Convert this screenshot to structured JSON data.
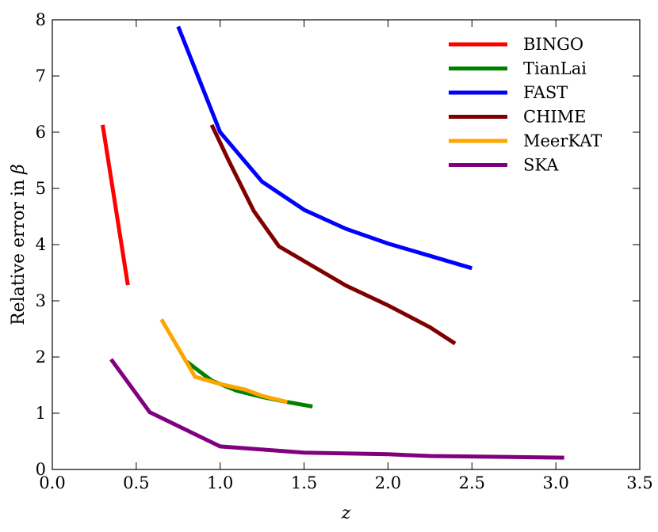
{
  "chart_data": {
    "type": "line",
    "title": "",
    "xlabel": "z",
    "ylabel_prefix": "Relative error in ",
    "ylabel_symbol": "β",
    "xlim": [
      0.0,
      3.5
    ],
    "ylim": [
      0,
      8
    ],
    "x_ticks": [
      0.0,
      0.5,
      1.0,
      1.5,
      2.0,
      2.5,
      3.0,
      3.5
    ],
    "x_tick_labels": [
      "0.0",
      "0.5",
      "1.0",
      "1.5",
      "2.0",
      "2.5",
      "3.0",
      "3.5"
    ],
    "y_ticks": [
      0,
      1,
      2,
      3,
      4,
      5,
      6,
      7,
      8
    ],
    "y_tick_labels": [
      "0",
      "1",
      "2",
      "3",
      "4",
      "5",
      "6",
      "7",
      "8"
    ],
    "grid": false,
    "legend_position": "top-right",
    "series": [
      {
        "name": "BINGO",
        "color": "#ff0000",
        "points": [
          [
            0.3,
            6.13
          ],
          [
            0.45,
            3.28
          ]
        ]
      },
      {
        "name": "TianLai",
        "color": "#008000",
        "points": [
          [
            0.8,
            1.92
          ],
          [
            0.95,
            1.58
          ],
          [
            1.1,
            1.4
          ],
          [
            1.25,
            1.29
          ],
          [
            1.4,
            1.2
          ],
          [
            1.55,
            1.12
          ]
        ]
      },
      {
        "name": "FAST",
        "color": "#0000ff",
        "points": [
          [
            0.75,
            7.88
          ],
          [
            1.0,
            6.0
          ],
          [
            1.25,
            5.12
          ],
          [
            1.5,
            4.62
          ],
          [
            1.75,
            4.28
          ],
          [
            2.0,
            4.02
          ],
          [
            2.25,
            3.8
          ],
          [
            2.5,
            3.58
          ]
        ]
      },
      {
        "name": "CHIME",
        "color": "#800000",
        "points": [
          [
            0.95,
            6.13
          ],
          [
            1.05,
            5.5
          ],
          [
            1.2,
            4.6
          ],
          [
            1.35,
            3.97
          ],
          [
            1.55,
            3.62
          ],
          [
            1.75,
            3.27
          ],
          [
            2.0,
            2.92
          ],
          [
            2.25,
            2.53
          ],
          [
            2.4,
            2.24
          ]
        ]
      },
      {
        "name": "MeerKAT",
        "color": "#ffa500",
        "points": [
          [
            0.65,
            2.67
          ],
          [
            0.85,
            1.65
          ],
          [
            1.0,
            1.52
          ],
          [
            1.15,
            1.42
          ],
          [
            1.25,
            1.31
          ],
          [
            1.4,
            1.2
          ]
        ]
      },
      {
        "name": "SKA",
        "color": "#800080",
        "points": [
          [
            0.35,
            1.96
          ],
          [
            0.58,
            1.02
          ],
          [
            1.0,
            0.41
          ],
          [
            1.5,
            0.3
          ],
          [
            2.0,
            0.27
          ],
          [
            2.25,
            0.24
          ],
          [
            3.05,
            0.21
          ]
        ]
      }
    ]
  }
}
